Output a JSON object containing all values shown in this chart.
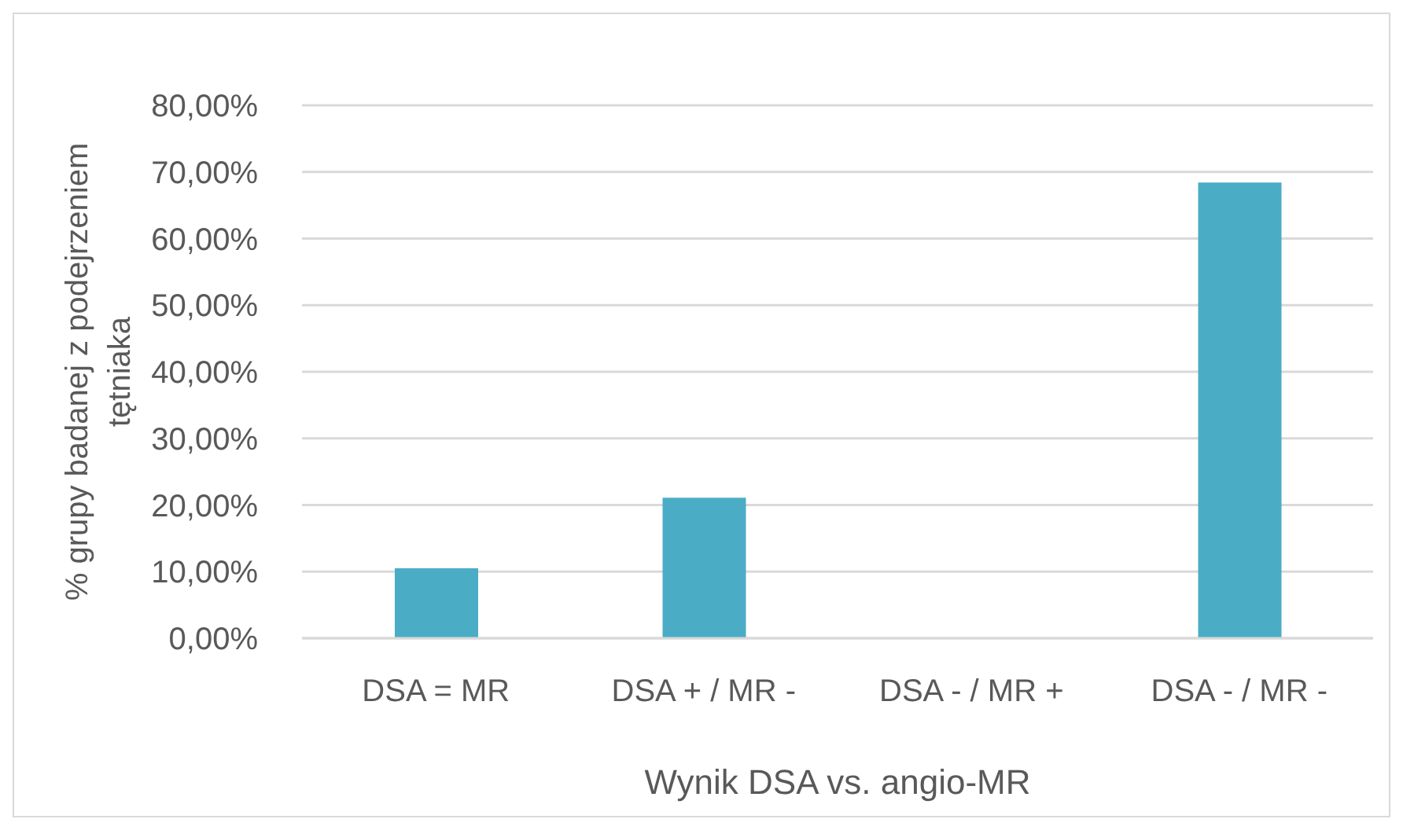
{
  "chart_data": {
    "type": "bar",
    "xlabel": "Wynik DSA vs. angio-MR",
    "ylabel": "% grupy badanej z podejrzeniem tętniaka",
    "categories": [
      "DSA = MR",
      "DSA + / MR -",
      "DSA - / MR +",
      "DSA - / MR -"
    ],
    "values": [
      10.5,
      21.1,
      0,
      68.4
    ],
    "color": "#4bacc6",
    "ylim": [
      0,
      80
    ],
    "yticks": [
      {
        "value": 0,
        "label": "0,00%"
      },
      {
        "value": 10,
        "label": "10,00%"
      },
      {
        "value": 20,
        "label": "20,00%"
      },
      {
        "value": 30,
        "label": "30,00%"
      },
      {
        "value": 40,
        "label": "40,00%"
      },
      {
        "value": 50,
        "label": "50,00%"
      },
      {
        "value": 60,
        "label": "60,00%"
      },
      {
        "value": 70,
        "label": "70,00%"
      },
      {
        "value": 80,
        "label": "80,00%"
      }
    ],
    "grid": "y"
  }
}
